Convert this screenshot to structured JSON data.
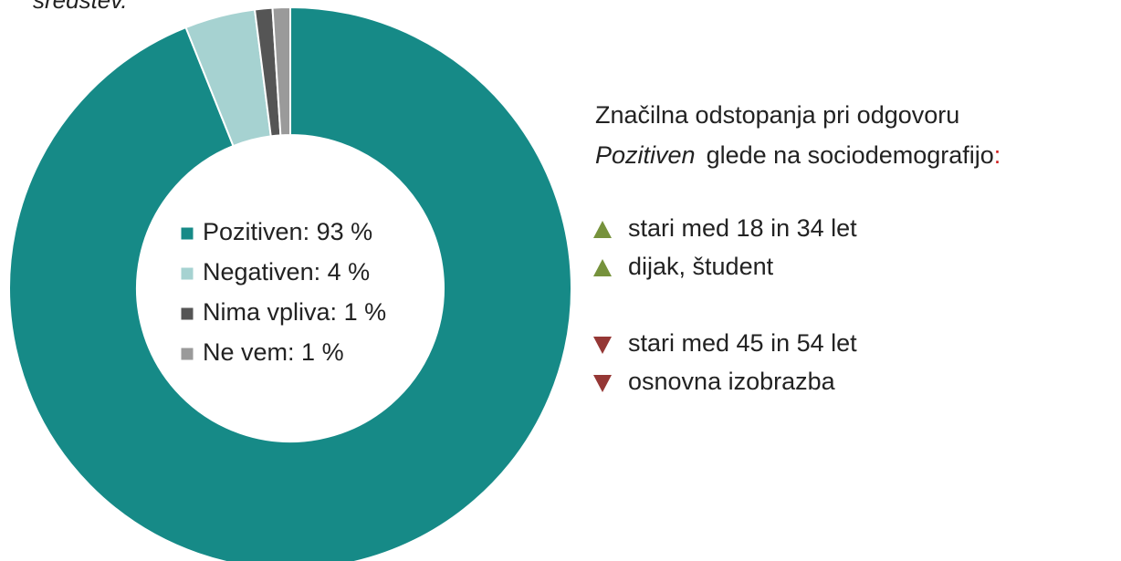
{
  "chart_data": {
    "type": "donut",
    "title": "sredstev.",
    "categories": [
      "Pozitiven",
      "Negativen",
      "Nima vpliva",
      "Ne vem"
    ],
    "values": [
      93,
      4,
      1,
      1
    ],
    "value_labels": [
      "93 %",
      "4 %",
      "1 %",
      "1 %"
    ],
    "colors": [
      "#168a87",
      "#a6d2d1",
      "#555555",
      "#9a9a9a"
    ],
    "legend": "center"
  },
  "notes": {
    "heading": "Značilna odstopanja pri odgovoru",
    "emphasis": "Pozitiven",
    "heading_rest": "glede na sociodemografijo",
    "heading_end": ":",
    "up": [
      "stari med 18 in 34 let",
      "dijak, študent"
    ],
    "down": [
      "stari med 45 in 54 let",
      "osnovna izobrazba"
    ]
  }
}
